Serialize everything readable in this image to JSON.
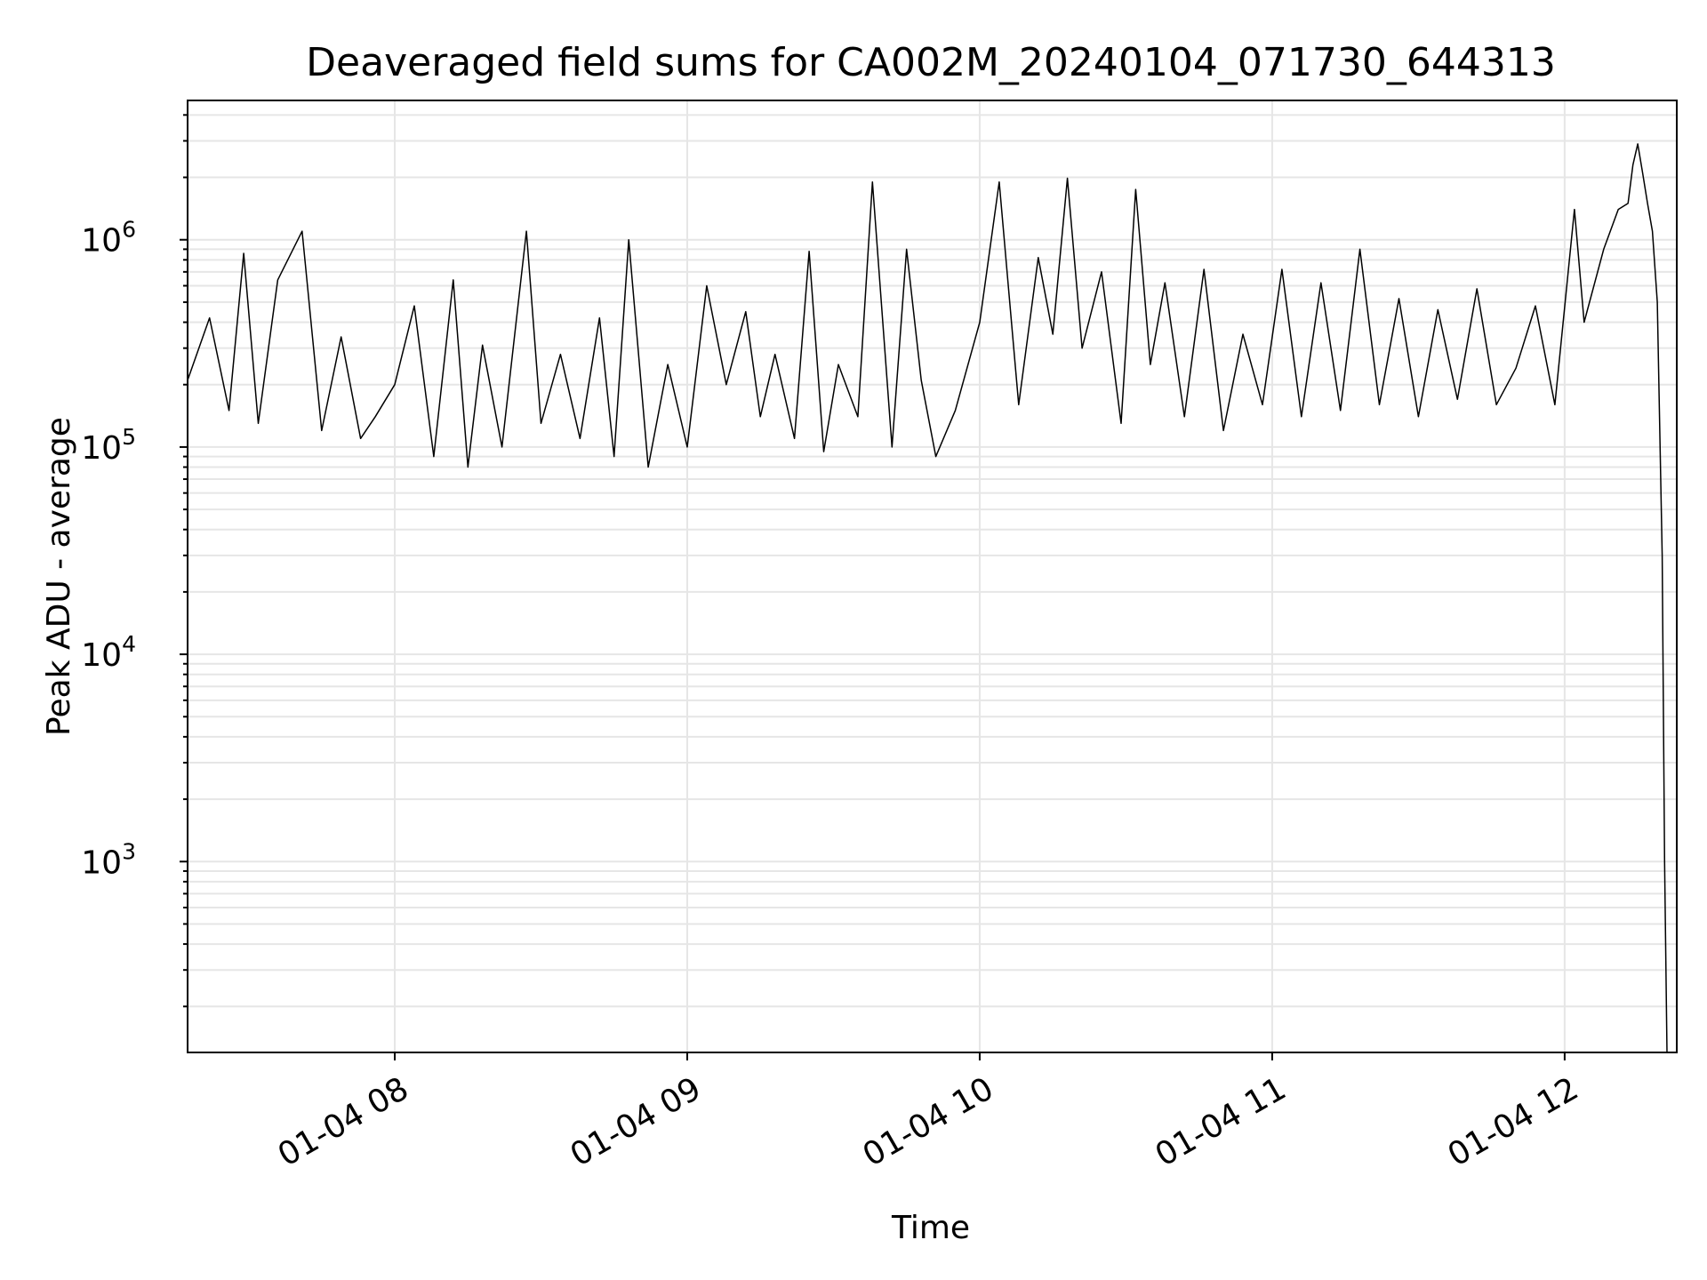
{
  "chart_data": {
    "type": "line",
    "title": "Deaveraged field sums for CA002M_20240104_071730_644313",
    "xlabel": "Time",
    "ylabel": "Peak ADU - average",
    "x_scale": "time",
    "y_scale": "log",
    "xlim": [
      "2024-01-04T07:17:30",
      "2024-01-04T12:23:00"
    ],
    "ylim": [
      120,
      4700000
    ],
    "x_ticks": [
      {
        "value": "2024-01-04T08:00",
        "label": "01-04 08"
      },
      {
        "value": "2024-01-04T09:00",
        "label": "01-04 09"
      },
      {
        "value": "2024-01-04T10:00",
        "label": "01-04 10"
      },
      {
        "value": "2024-01-04T11:00",
        "label": "01-04 11"
      },
      {
        "value": "2024-01-04T12:00",
        "label": "01-04 12"
      }
    ],
    "y_ticks": [
      {
        "value": 1000,
        "base": "10",
        "exp": "3"
      },
      {
        "value": 10000,
        "base": "10",
        "exp": "4"
      },
      {
        "value": 100000,
        "base": "10",
        "exp": "5"
      },
      {
        "value": 1000000,
        "base": "10",
        "exp": "6"
      }
    ],
    "grid": true,
    "line_color": "#000000",
    "grid_color": "#e6e6e6",
    "series": [
      {
        "x": [
          "07:17:30",
          "07:22",
          "07:26",
          "07:29",
          "07:32",
          "07:36",
          "07:41",
          "07:45",
          "07:49",
          "07:53",
          "07:56",
          "08:00",
          "08:04",
          "08:08",
          "08:12",
          "08:15",
          "08:18",
          "08:22",
          "08:27",
          "08:30",
          "08:34",
          "08:38",
          "08:42",
          "08:45",
          "08:48",
          "08:52",
          "08:56",
          "09:00",
          "09:04",
          "09:08",
          "09:12",
          "09:15",
          "09:18",
          "09:22",
          "09:25",
          "09:28",
          "09:31",
          "09:35",
          "09:38",
          "09:42",
          "09:45",
          "09:48",
          "09:51",
          "09:55",
          "10:00",
          "10:04",
          "10:08",
          "10:12",
          "10:15",
          "10:18",
          "10:21",
          "10:25",
          "10:29",
          "10:32",
          "10:35",
          "10:38",
          "10:42",
          "10:46",
          "10:50",
          "10:54",
          "10:58",
          "11:02",
          "11:06",
          "11:10",
          "11:14",
          "11:18",
          "11:22",
          "11:26",
          "11:30",
          "11:34",
          "11:38",
          "11:42",
          "11:46",
          "11:50",
          "11:54",
          "11:58",
          "12:02",
          "12:04",
          "12:08",
          "12:11",
          "12:13",
          "12:14",
          "12:15",
          "12:16",
          "12:17",
          "12:18",
          "12:19",
          "12:20",
          "12:20:30",
          "12:21"
        ],
        "y": [
          210000,
          420000,
          150000,
          860000,
          130000,
          640000,
          1100000,
          120000,
          340000,
          110000,
          140000,
          200000,
          480000,
          90000,
          640000,
          80000,
          310000,
          100000,
          1100000,
          130000,
          280000,
          110000,
          420000,
          90000,
          1000000,
          80000,
          250000,
          100000,
          600000,
          200000,
          450000,
          140000,
          280000,
          110000,
          880000,
          95000,
          250000,
          140000,
          1900000,
          100000,
          900000,
          210000,
          90000,
          150000,
          400000,
          1900000,
          160000,
          820000,
          350000,
          1980000,
          300000,
          700000,
          130000,
          1750000,
          250000,
          620000,
          140000,
          720000,
          120000,
          350000,
          160000,
          720000,
          140000,
          620000,
          150000,
          900000,
          160000,
          520000,
          140000,
          460000,
          170000,
          580000,
          160000,
          240000,
          480000,
          160000,
          1400000,
          400000,
          900000,
          1400000,
          1500000,
          2300000,
          2900000,
          2100000,
          1500000,
          1100000,
          500000,
          30000,
          1000,
          120
        ]
      }
    ]
  }
}
